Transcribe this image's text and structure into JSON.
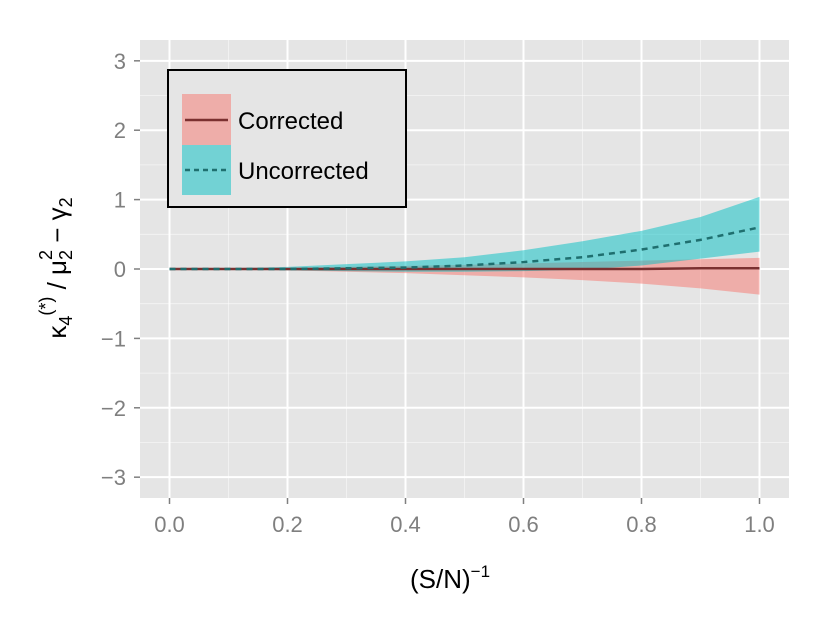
{
  "chart_data": {
    "type": "area",
    "x": [
      0.0,
      0.1,
      0.2,
      0.3,
      0.4,
      0.5,
      0.6,
      0.7,
      0.8,
      0.9,
      1.0
    ],
    "series": [
      {
        "name": "Corrected",
        "line_style": "solid",
        "line_color": "#7a3030",
        "fill_color": "#F8766D",
        "y": [
          0,
          0,
          0,
          0,
          0,
          0,
          0,
          0,
          0,
          0.01,
          0.01
        ],
        "lower": [
          0,
          -0.005,
          -0.02,
          -0.04,
          -0.06,
          -0.09,
          -0.12,
          -0.16,
          -0.21,
          -0.28,
          -0.37
        ],
        "upper": [
          0,
          0.005,
          0.015,
          0.03,
          0.045,
          0.06,
          0.08,
          0.1,
          0.12,
          0.14,
          0.16
        ]
      },
      {
        "name": "Uncorrected",
        "line_style": "dashed",
        "line_color": "#1f6f6f",
        "fill_color": "#00BFC4",
        "y": [
          0,
          0,
          0,
          0.01,
          0.02,
          0.05,
          0.1,
          0.17,
          0.28,
          0.42,
          0.6
        ],
        "lower": [
          0,
          -0.005,
          -0.02,
          -0.03,
          -0.04,
          -0.04,
          -0.03,
          -0.01,
          0.05,
          0.15,
          0.25
        ],
        "upper": [
          0,
          0.01,
          0.03,
          0.07,
          0.11,
          0.17,
          0.27,
          0.4,
          0.55,
          0.75,
          1.04
        ]
      }
    ],
    "xlabel": "(S/N)",
    "xlabel_superscript": "−1",
    "ylabel_parts": {
      "kappa": "κ",
      "kappa_sub": "4",
      "kappa_sup": "(*)",
      "slash": " / ",
      "mu": "μ",
      "mu_sub": "2",
      "mu_sup": "2",
      "minus": " − ",
      "gamma": "γ",
      "gamma_sub": "2"
    },
    "xlim": [
      -0.05,
      1.05
    ],
    "ylim": [
      -3.3,
      3.3
    ],
    "xticks": [
      0.0,
      0.2,
      0.4,
      0.6,
      0.8,
      1.0
    ],
    "xtick_labels": [
      "0.0",
      "0.2",
      "0.4",
      "0.6",
      "0.8",
      "1.0"
    ],
    "yticks": [
      -3,
      -2,
      -1,
      0,
      1,
      2,
      3
    ],
    "ytick_labels": [
      "−3",
      "−2",
      "−1",
      "0",
      "1",
      "2",
      "3"
    ],
    "grid": true,
    "legend_position": "top-left",
    "colors": {
      "panel_background": "#E5E5E5",
      "grid": "#ffffff",
      "tick_text": "#7f7f7f"
    }
  }
}
